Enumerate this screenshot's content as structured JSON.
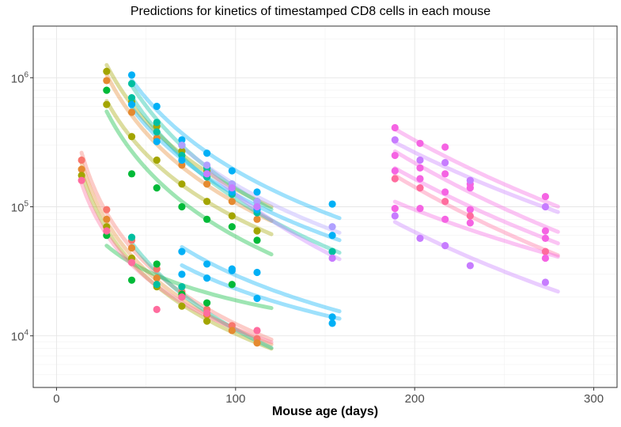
{
  "chart_data": {
    "type": "scatter",
    "title": "Predictions for kinetics of timestamped CD8 cells in each mouse",
    "xlabel": "Mouse age (days)",
    "ylabel": "",
    "xlim": [
      -13,
      313
    ],
    "ylim_log10": [
      3.6,
      6.4
    ],
    "y_scale": "log10",
    "grid": true,
    "x_ticks": [
      {
        "value": 0,
        "label": "0"
      },
      {
        "value": 100,
        "label": "100"
      },
      {
        "value": 200,
        "label": "200"
      },
      {
        "value": 300,
        "label": "300"
      }
    ],
    "y_ticks": [
      {
        "exp": 4,
        "label": "10",
        "sup": "4"
      },
      {
        "exp": 5,
        "label": "10",
        "sup": "5"
      },
      {
        "exp": 6,
        "label": "10",
        "sup": "6"
      }
    ],
    "colors": {
      "red": "#F8766D",
      "orange": "#E58A30",
      "olive": "#A3A500",
      "green": "#00BA38",
      "teal": "#00BFA0",
      "cyan": "#00B0F6",
      "lavender": "#B0A0FF",
      "violet": "#C77CFF",
      "magenta": "#F564E3",
      "pink": "#FF6C9E"
    },
    "series": [
      {
        "color": "#F8766D",
        "x": [
          14,
          28,
          42,
          56,
          70,
          84,
          98,
          112
        ],
        "y": [
          230000,
          95000,
          55000,
          33000,
          22000,
          16000,
          12000,
          9500
        ]
      },
      {
        "color": "#E58A30",
        "x": [
          14,
          28,
          42,
          56,
          70,
          84,
          98,
          112
        ],
        "y": [
          195000,
          80000,
          48000,
          28000,
          20000,
          14500,
          11000,
          8800
        ]
      },
      {
        "color": "#A3A500",
        "x": [
          14,
          28,
          42,
          56,
          70,
          84
        ],
        "y": [
          175000,
          70000,
          40000,
          24000,
          17000,
          13000
        ]
      },
      {
        "color": "#00BA38",
        "x": [
          28,
          42,
          56,
          70,
          84,
          98
        ],
        "y": [
          60000,
          27000,
          36000,
          21000,
          18000,
          25000
        ]
      },
      {
        "color": "#00BFA0",
        "x": [
          42,
          56,
          70
        ],
        "y": [
          58000,
          25000,
          24000
        ]
      },
      {
        "color": "#FF6C9E",
        "x": [
          14,
          28,
          42,
          56,
          70,
          84,
          112
        ],
        "y": [
          160000,
          65000,
          37000,
          16000,
          20000,
          15000,
          11000
        ]
      },
      {
        "color": "#E58A30",
        "x": [
          28,
          42,
          56,
          70,
          84,
          98,
          112
        ],
        "y": [
          950000,
          540000,
          340000,
          210000,
          150000,
          110000,
          80000
        ]
      },
      {
        "color": "#A3A500",
        "x": [
          28,
          42,
          56,
          70,
          84,
          98,
          112
        ],
        "y": [
          1120000,
          650000,
          420000,
          270000,
          190000,
          140000,
          100000
        ]
      },
      {
        "color": "#A3A500",
        "x": [
          28,
          42,
          56,
          70,
          84,
          98,
          112
        ],
        "y": [
          620000,
          350000,
          230000,
          150000,
          110000,
          85000,
          65000
        ]
      },
      {
        "color": "#00BA38",
        "x": [
          28,
          42,
          56,
          70,
          84,
          98,
          112
        ],
        "y": [
          800000,
          180000,
          140000,
          100000,
          80000,
          70000,
          55000
        ]
      },
      {
        "color": "#00BFA0",
        "x": [
          42,
          56,
          70,
          84,
          98,
          112
        ],
        "y": [
          900000,
          450000,
          300000,
          200000,
          150000,
          110000
        ]
      },
      {
        "color": "#00BFA0",
        "x": [
          42,
          56,
          70,
          84,
          98,
          112,
          154
        ],
        "y": [
          700000,
          380000,
          250000,
          170000,
          125000,
          90000,
          45000
        ]
      },
      {
        "color": "#00B0F6",
        "x": [
          42,
          56,
          70,
          84,
          98,
          112,
          154
        ],
        "y": [
          1050000,
          600000,
          330000,
          260000,
          190000,
          130000,
          105000
        ]
      },
      {
        "color": "#00B0F6",
        "x": [
          42,
          56,
          70,
          84,
          98,
          112,
          154
        ],
        "y": [
          620000,
          320000,
          230000,
          180000,
          130000,
          95000,
          60000
        ]
      },
      {
        "color": "#00B0F6",
        "x": [
          70,
          84,
          98,
          112,
          154
        ],
        "y": [
          45000,
          36000,
          32000,
          31000,
          14000
        ]
      },
      {
        "color": "#00B0F6",
        "x": [
          70,
          84,
          98,
          112,
          154
        ],
        "y": [
          30000,
          28000,
          33000,
          19500,
          12500
        ]
      },
      {
        "color": "#B0A0FF",
        "x": [
          70,
          84,
          98,
          112,
          154
        ],
        "y": [
          300000,
          210000,
          150000,
          110000,
          70000
        ]
      },
      {
        "color": "#C77CFF",
        "x": [
          84,
          98,
          112,
          154
        ],
        "y": [
          180000,
          140000,
          100000,
          40000
        ]
      },
      {
        "color": "#F564E3",
        "x": [
          189,
          203,
          217,
          231,
          273
        ],
        "y": [
          410000,
          310000,
          290000,
          150000,
          120000
        ]
      },
      {
        "color": "#C77CFF",
        "x": [
          189,
          203,
          217,
          231,
          273
        ],
        "y": [
          330000,
          230000,
          220000,
          160000,
          100000
        ]
      },
      {
        "color": "#F564E3",
        "x": [
          189,
          203,
          217,
          231,
          273
        ],
        "y": [
          250000,
          200000,
          180000,
          140000,
          65000
        ]
      },
      {
        "color": "#F564E3",
        "x": [
          189,
          203,
          217,
          231,
          273
        ],
        "y": [
          190000,
          165000,
          130000,
          95000,
          57000
        ]
      },
      {
        "color": "#FF6C9E",
        "x": [
          189,
          203,
          217,
          231,
          273
        ],
        "y": [
          165000,
          140000,
          110000,
          85000,
          45000
        ]
      },
      {
        "color": "#F564E3",
        "x": [
          189,
          203,
          217,
          231,
          273
        ],
        "y": [
          97000,
          97000,
          80000,
          75000,
          40000
        ]
      },
      {
        "color": "#C77CFF",
        "x": [
          189,
          203,
          217,
          231,
          273
        ],
        "y": [
          85000,
          57000,
          50000,
          35000,
          26000
        ]
      }
    ]
  }
}
